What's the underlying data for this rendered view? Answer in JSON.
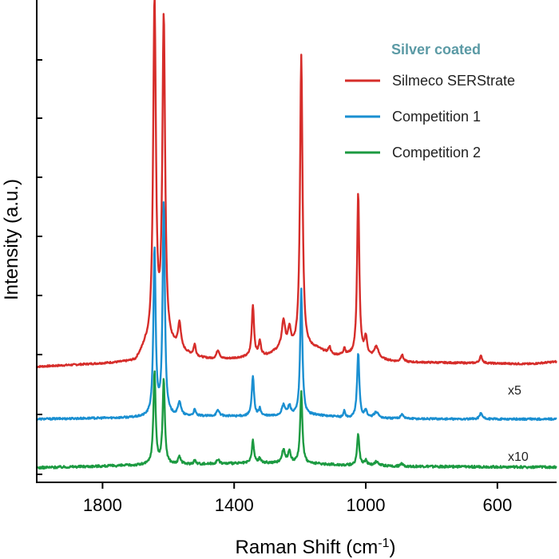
{
  "chart_data": {
    "type": "line",
    "xlabel_main": "Raman Shift (cm",
    "xlabel_sup": "-1",
    "xlabel_close": ")",
    "ylabel": "Intensity (a.u.)",
    "x_ticks": [
      1800,
      1400,
      1000,
      600
    ],
    "xlim": [
      2000,
      420
    ],
    "ylim": [
      0,
      100
    ],
    "x_reversed": true,
    "grid": false,
    "legend_position": "top-right",
    "legend_title": "Silver coated",
    "legend_title_color": "#5b9aa5",
    "series": [
      {
        "name": "Silmeco SERStrate",
        "color": "#d62d2a",
        "baseline": [
          [
            2000,
            23.2
          ],
          [
            1700,
            24.2
          ],
          [
            1670,
            27
          ],
          [
            1580,
            27
          ],
          [
            1520,
            25.2
          ],
          [
            1450,
            24.6
          ],
          [
            1300,
            25.6
          ],
          [
            1260,
            26.8
          ],
          [
            1150,
            27
          ],
          [
            1100,
            25.6
          ],
          [
            1050,
            25.6
          ],
          [
            900,
            24.2
          ],
          [
            700,
            24.0
          ],
          [
            500,
            23.8
          ],
          [
            420,
            24.3
          ]
        ],
        "peaks": [
          {
            "x": 1642,
            "h": 74,
            "w": 5
          },
          {
            "x": 1614,
            "h": 70,
            "w": 5
          },
          {
            "x": 1566,
            "h": 5.5,
            "w": 5
          },
          {
            "x": 1520,
            "h": 2.5,
            "w": 4
          },
          {
            "x": 1449,
            "h": 2.0,
            "w": 6
          },
          {
            "x": 1343,
            "h": 11,
            "w": 4
          },
          {
            "x": 1322,
            "h": 3.0,
            "w": 4
          },
          {
            "x": 1250,
            "h": 6,
            "w": 6
          },
          {
            "x": 1232,
            "h": 4,
            "w": 5
          },
          {
            "x": 1196,
            "h": 63,
            "w": 4.5
          },
          {
            "x": 1110,
            "h": 1.5,
            "w": 4
          },
          {
            "x": 1065,
            "h": 1.5,
            "w": 3
          },
          {
            "x": 1023,
            "h": 35,
            "w": 4
          },
          {
            "x": 1000,
            "h": 4,
            "w": 5
          },
          {
            "x": 968,
            "h": 2.5,
            "w": 8
          },
          {
            "x": 890,
            "h": 1.5,
            "w": 5
          },
          {
            "x": 650,
            "h": 1.5,
            "w": 5
          }
        ],
        "noise": 0.18,
        "annotation": ""
      },
      {
        "name": "Competition 1",
        "color": "#1a8fd1",
        "baseline": [
          [
            2000,
            12.0
          ],
          [
            1700,
            12.3
          ],
          [
            1560,
            12.6
          ],
          [
            1300,
            12.6
          ],
          [
            1150,
            12.8
          ],
          [
            1050,
            12.2
          ],
          [
            900,
            12.1
          ],
          [
            700,
            12.0
          ],
          [
            420,
            12.0
          ]
        ],
        "peaks": [
          {
            "x": 1642,
            "h": 36,
            "w": 4
          },
          {
            "x": 1614,
            "h": 46,
            "w": 4
          },
          {
            "x": 1566,
            "h": 3.0,
            "w": 5
          },
          {
            "x": 1520,
            "h": 1.3,
            "w": 4
          },
          {
            "x": 1449,
            "h": 1.2,
            "w": 6
          },
          {
            "x": 1343,
            "h": 8.5,
            "w": 4
          },
          {
            "x": 1322,
            "h": 1.5,
            "w": 4
          },
          {
            "x": 1250,
            "h": 2.2,
            "w": 6
          },
          {
            "x": 1232,
            "h": 2.0,
            "w": 5
          },
          {
            "x": 1196,
            "h": 27,
            "w": 4
          },
          {
            "x": 1065,
            "h": 1.5,
            "w": 3
          },
          {
            "x": 1023,
            "h": 14,
            "w": 4
          },
          {
            "x": 1000,
            "h": 1.5,
            "w": 5
          },
          {
            "x": 968,
            "h": 1.3,
            "w": 8
          },
          {
            "x": 890,
            "h": 1.0,
            "w": 5
          },
          {
            "x": 650,
            "h": 1.3,
            "w": 5
          }
        ],
        "noise": 0.2,
        "annotation": "x5"
      },
      {
        "name": "Competition 2",
        "color": "#1c9a41",
        "baseline": [
          [
            2000,
            1.6
          ],
          [
            1700,
            2.1
          ],
          [
            1560,
            2.3
          ],
          [
            1300,
            2.6
          ],
          [
            1150,
            2.4
          ],
          [
            1050,
            2.1
          ],
          [
            900,
            1.9
          ],
          [
            700,
            1.8
          ],
          [
            420,
            1.7
          ]
        ],
        "peaks": [
          {
            "x": 1642,
            "h": 20,
            "w": 4
          },
          {
            "x": 1614,
            "h": 18,
            "w": 4
          },
          {
            "x": 1566,
            "h": 1.5,
            "w": 5
          },
          {
            "x": 1520,
            "h": 0.8,
            "w": 4
          },
          {
            "x": 1449,
            "h": 0.8,
            "w": 6
          },
          {
            "x": 1343,
            "h": 4.8,
            "w": 4
          },
          {
            "x": 1322,
            "h": 1.0,
            "w": 4
          },
          {
            "x": 1250,
            "h": 2.8,
            "w": 6
          },
          {
            "x": 1232,
            "h": 2.3,
            "w": 5
          },
          {
            "x": 1196,
            "h": 15.5,
            "w": 4
          },
          {
            "x": 1023,
            "h": 6.8,
            "w": 4
          },
          {
            "x": 1000,
            "h": 1.0,
            "w": 5
          },
          {
            "x": 968,
            "h": 0.8,
            "w": 8
          },
          {
            "x": 890,
            "h": 0.5,
            "w": 5
          }
        ],
        "noise": 0.25,
        "annotation": "x10"
      }
    ]
  }
}
